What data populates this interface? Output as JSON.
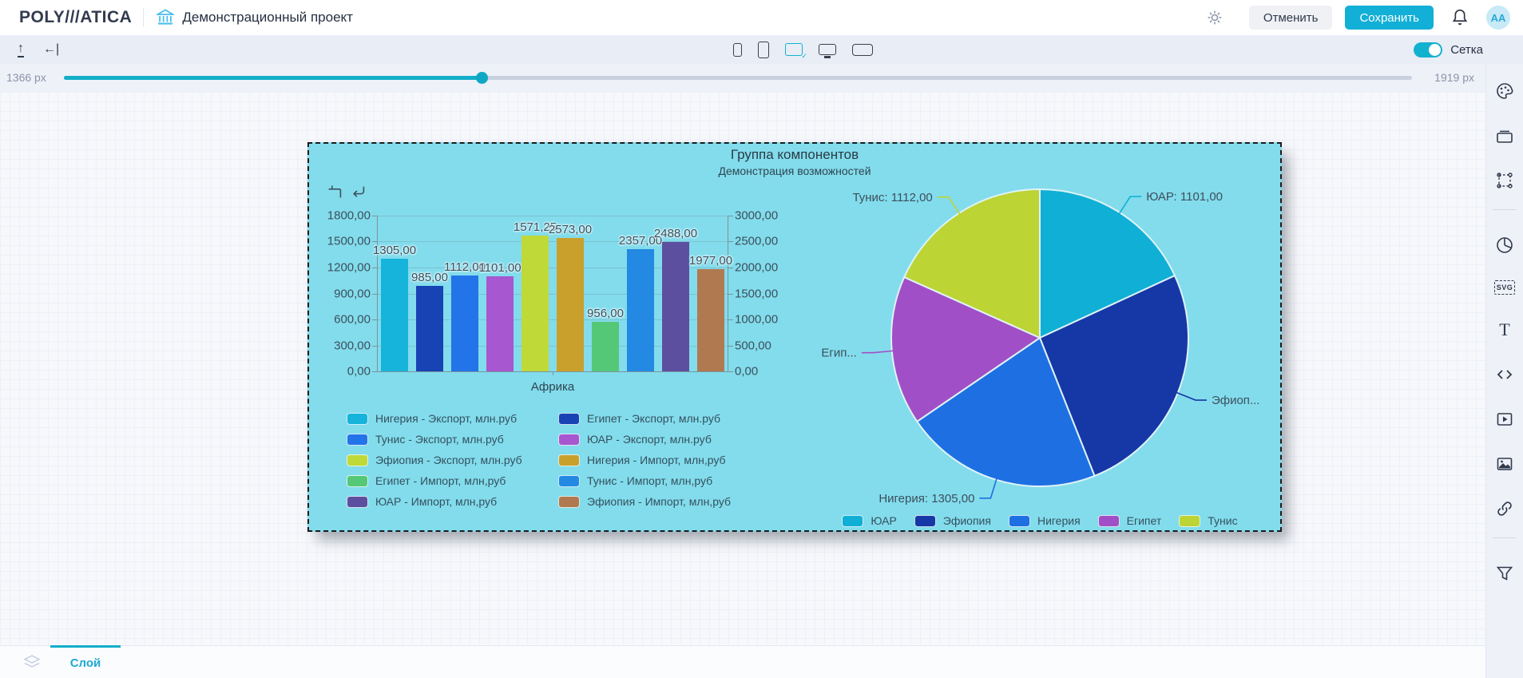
{
  "header": {
    "logo": "POLY///ATICA",
    "project_title": "Демонстрационный проект",
    "cancel_label": "Отменить",
    "save_label": "Сохранить",
    "avatar_initials": "AA"
  },
  "toolbar": {
    "grid_toggle_label": "Сетка",
    "grid_toggle_on": true,
    "slider_min_label": "1366 px",
    "slider_max_label": "1919 px",
    "device_icons": [
      "phone-small",
      "phone",
      "tablet-selected",
      "monitor",
      "display"
    ]
  },
  "sidebar": {
    "tools": [
      "palette",
      "container",
      "transform-frame",
      "pie-chart",
      "svg",
      "text",
      "code",
      "video",
      "image",
      "link",
      "filter"
    ]
  },
  "footer": {
    "layer_tab_label": "Слой"
  },
  "component": {
    "title": "Группа компонентов",
    "subtitle": "Демонстрация возможностей"
  },
  "colors": {
    "accent": "#12AFD6",
    "component_bg": "#82DCEC",
    "canvas_bg": "#F7F8FC"
  },
  "chart_data": [
    {
      "type": "bar",
      "xlabel": "Африка",
      "categories": [
        "Африка"
      ],
      "left_axis": {
        "ticks": [
          "1800,00",
          "1500,00",
          "1200,00",
          "900,00",
          "600,00",
          "300,00",
          "0,00"
        ],
        "max": 1800,
        "min": 0
      },
      "right_axis": {
        "ticks": [
          "3000,00",
          "2500,00",
          "2000,00",
          "1500,00",
          "1000,00",
          "500,00",
          "0,00"
        ],
        "max": 3000,
        "min": 0
      },
      "series": [
        {
          "name": "Нигерия - Экспорт, млн.руб",
          "value": 1305.0,
          "label": "1305,00",
          "color": "#16B4DA",
          "axis": "left"
        },
        {
          "name": "Египет - Экспорт, млн.руб",
          "value": 985.0,
          "label": "985,00",
          "color": "#1843B4",
          "axis": "left"
        },
        {
          "name": "Тунис - Экспорт, млн.руб",
          "value": 1112.0,
          "label": "1112,00",
          "color": "#2374E8",
          "axis": "left"
        },
        {
          "name": "ЮАР - Экспорт, млн.руб",
          "value": 1101.0,
          "label": "1101,00",
          "color": "#A757CF",
          "axis": "left"
        },
        {
          "name": "Эфиопия - Экспорт, млн.руб",
          "value": 1571.25,
          "label": "1571,25",
          "color": "#BFD939",
          "axis": "left"
        },
        {
          "name": "Нигерия - Импорт, млн,руб",
          "value": 2573.0,
          "label": "2573,00",
          "color": "#C9A02B",
          "axis": "right"
        },
        {
          "name": "Египет - Импорт, млн,руб",
          "value": 956.0,
          "label": "956,00",
          "color": "#55C877",
          "axis": "right"
        },
        {
          "name": "Тунис - Импорт, млн,руб",
          "value": 2357.0,
          "label": "2357,00",
          "color": "#2489E2",
          "axis": "right"
        },
        {
          "name": "ЮАР - Импорт, млн,руб",
          "value": 2488.0,
          "label": "2488,00",
          "color": "#5D4FA0",
          "axis": "right"
        },
        {
          "name": "Эфиопия - Импорт, млн,руб",
          "value": 1977.0,
          "label": "1977,00",
          "color": "#B0794F",
          "axis": "right"
        }
      ],
      "legend_position": "bottom"
    },
    {
      "type": "pie",
      "slices": [
        {
          "name": "ЮАР",
          "value": 1101.0,
          "label": "ЮАР: 1101,00",
          "color": "#10AFD6"
        },
        {
          "name": "Эфиопия",
          "value": 1571.25,
          "label": "Эфиоп...",
          "color": "#1638A6"
        },
        {
          "name": "Нигерия",
          "value": 1305.0,
          "label": "Нигерия: 1305,00",
          "color": "#1E70E2"
        },
        {
          "name": "Египет",
          "value": 985.0,
          "label": "Егип...",
          "color": "#A14FC6"
        },
        {
          "name": "Тунис",
          "value": 1112.0,
          "label": "Тунис: 1112,00",
          "color": "#BCD434"
        }
      ],
      "legend": [
        "ЮАР",
        "Эфиопия",
        "Нигерия",
        "Египет",
        "Тунис"
      ],
      "legend_position": "bottom"
    }
  ]
}
